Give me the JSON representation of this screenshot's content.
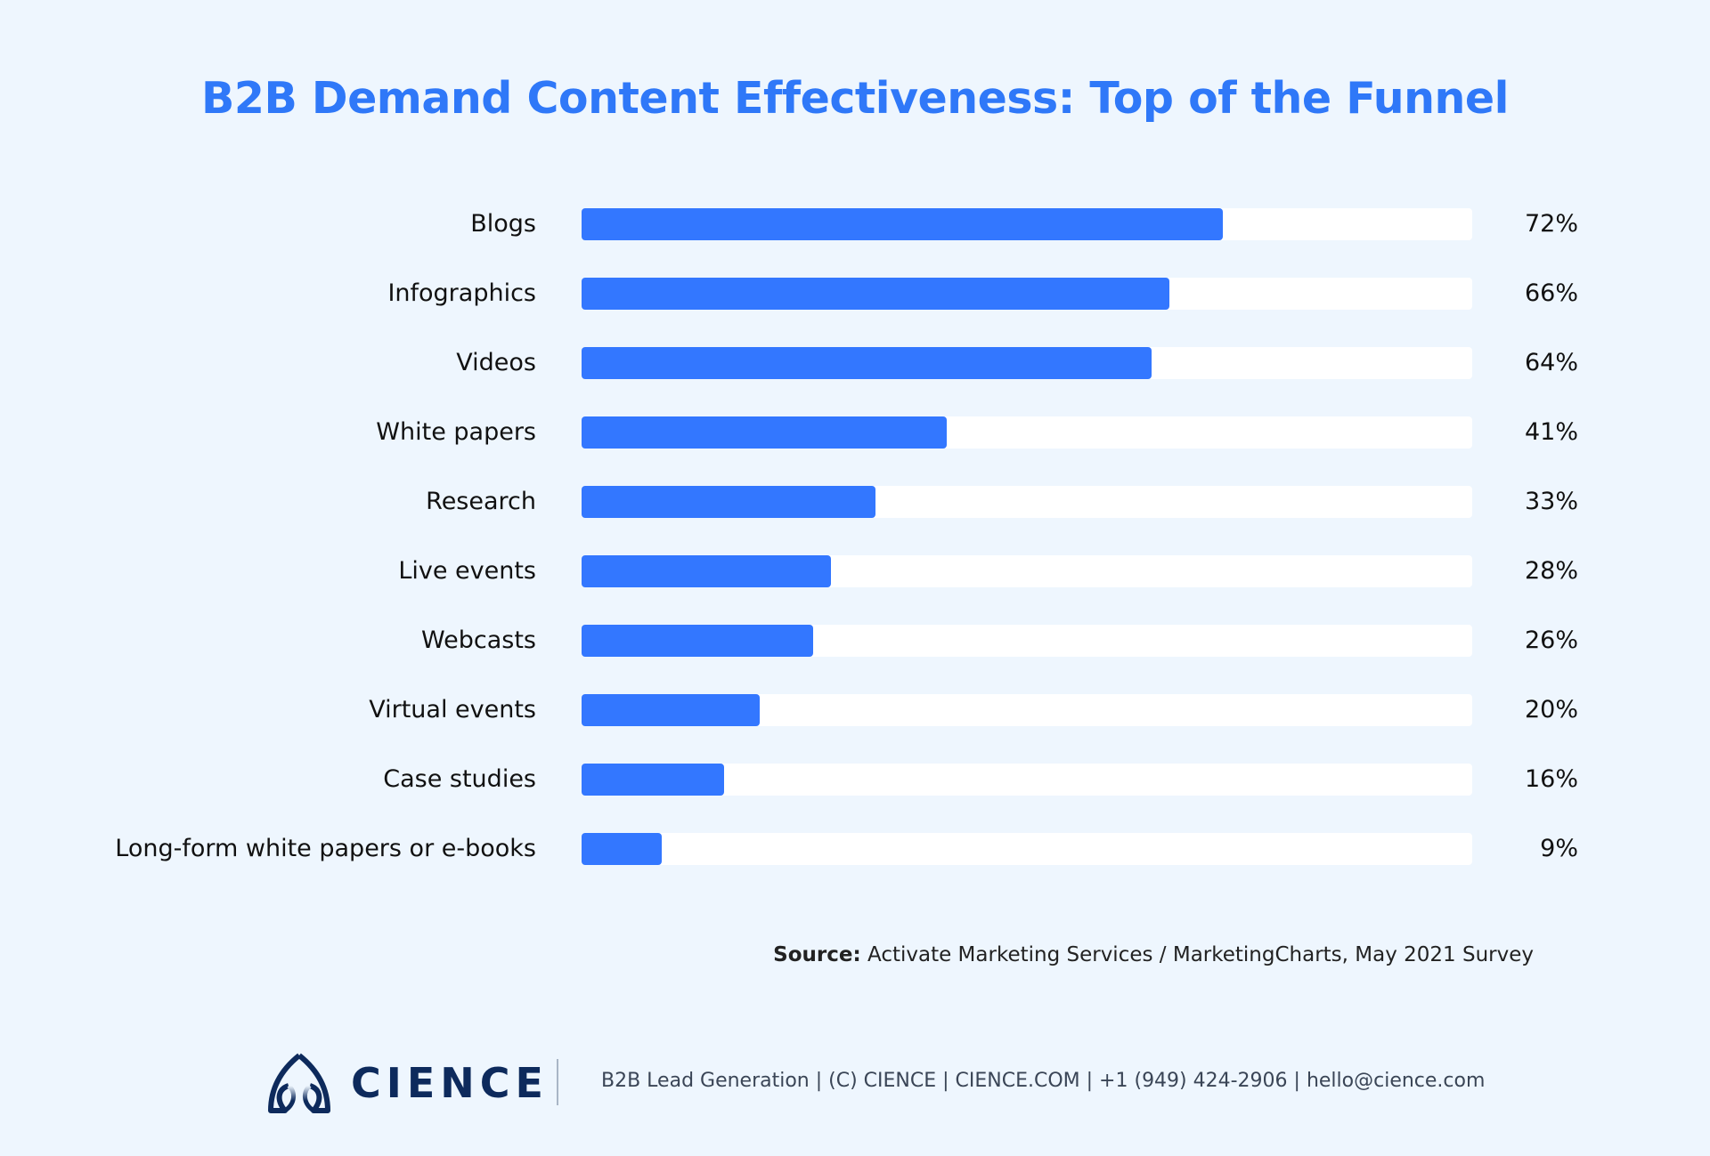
{
  "chart_data": {
    "type": "bar",
    "orientation": "horizontal",
    "title": "B2B Demand Content Effectiveness: Top of the Funnel",
    "categories": [
      "Blogs",
      "Infographics",
      "Videos",
      "White papers",
      "Research",
      "Live events",
      "Webcasts",
      "Virtual events",
      "Case studies",
      "Long-form white papers or e-books"
    ],
    "values": [
      72,
      66,
      64,
      41,
      33,
      28,
      26,
      20,
      16,
      9
    ],
    "value_labels": [
      "72%",
      "66%",
      "64%",
      "41%",
      "33%",
      "28%",
      "26%",
      "20%",
      "16%",
      "9%"
    ],
    "xlim": [
      0,
      100
    ],
    "grid": false,
    "colors": {
      "bar": "#3377ff",
      "track": "#ffffff",
      "title": "#2f78f8",
      "background": "#eef6fe"
    }
  },
  "source": {
    "label": "Source:",
    "text": " Activate Marketing Services / MarketingCharts, May 2021 Survey"
  },
  "footer": {
    "brand": "CIENCE",
    "contact": "B2B Lead Generation | (C) CIENCE | CIENCE.COM | +1 (949) 424-2906 | hello@cience.com",
    "logo_icon": "cience-logo-icon"
  }
}
